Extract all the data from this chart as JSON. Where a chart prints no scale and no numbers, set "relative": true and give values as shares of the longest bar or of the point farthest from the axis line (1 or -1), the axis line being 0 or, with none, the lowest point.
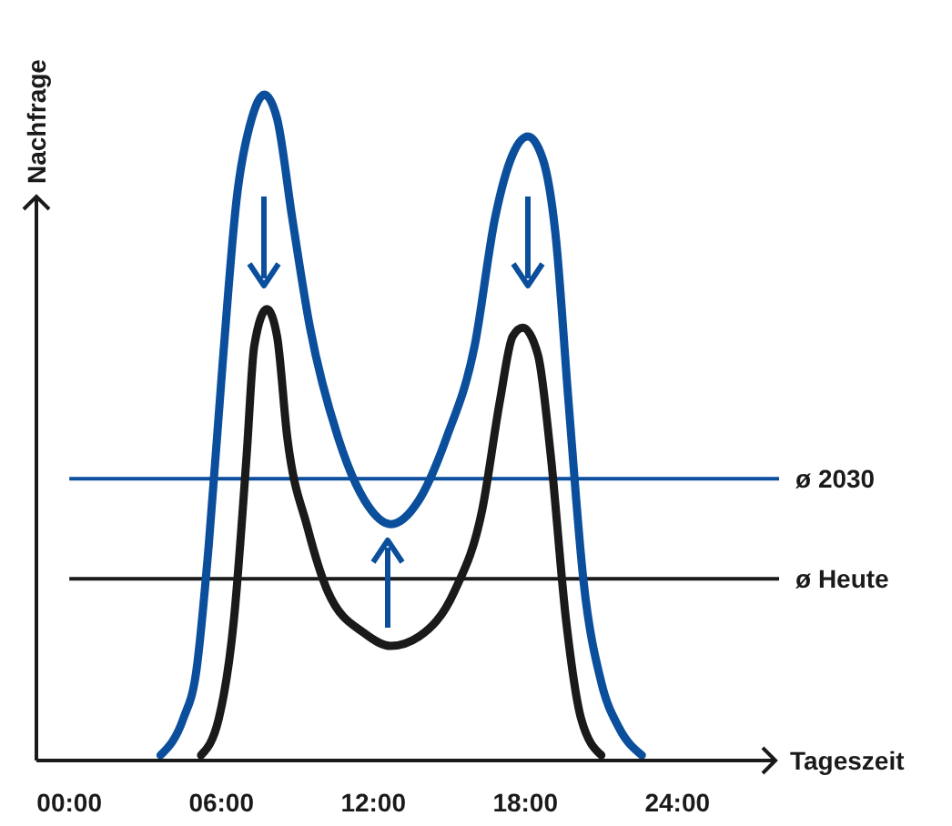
{
  "chart_data": {
    "type": "line",
    "relative": true,
    "xlabel": "Tageszeit",
    "ylabel": "Nachfrage",
    "xlim": [
      -1.3,
      27.8
    ],
    "xticks": [
      {
        "value": 0,
        "label": "00:00"
      },
      {
        "value": 6,
        "label": "06:00"
      },
      {
        "value": 12,
        "label": "12:00"
      },
      {
        "value": 18,
        "label": "18:00"
      },
      {
        "value": 24,
        "label": "24:00"
      }
    ],
    "grid": false,
    "marker": "none",
    "line_style": "solid",
    "series": [
      {
        "color": "#0b4f9c",
        "x": [
          3.6,
          4.5,
          5.0,
          5.5,
          6.05,
          6.6,
          7.2,
          7.7,
          8.2,
          8.8,
          9.5,
          10.6,
          11.65,
          12.7,
          13.8,
          14.9,
          16.0,
          16.8,
          17.5,
          18.1,
          18.7,
          19.2,
          19.7,
          20.3,
          21.0,
          21.7,
          22.6
        ],
        "values": [
          0.008,
          0.063,
          0.131,
          0.322,
          0.596,
          0.842,
          0.964,
          1,
          0.964,
          0.814,
          0.65,
          0.486,
          0.391,
          0.355,
          0.391,
          0.486,
          0.623,
          0.814,
          0.91,
          0.937,
          0.902,
          0.787,
          0.541,
          0.268,
          0.117,
          0.049,
          0.008
        ]
      },
      {
        "color": "#1a1a1a",
        "x": [
          5.2,
          5.9,
          6.5,
          7.0,
          7.3,
          7.8,
          8.2,
          8.6,
          9.4,
          10.2,
          11.65,
          12.7,
          13.8,
          15.2,
          16.3,
          17.0,
          17.5,
          17.9,
          18.5,
          19.0,
          19.6,
          20.2,
          21.0
        ],
        "values": [
          0.008,
          0.063,
          0.213,
          0.459,
          0.623,
          0.678,
          0.637,
          0.486,
          0.35,
          0.254,
          0.191,
          0.172,
          0.186,
          0.254,
          0.377,
          0.541,
          0.637,
          0.65,
          0.609,
          0.459,
          0.213,
          0.063,
          0.008
        ]
      }
    ],
    "ref_lines": [
      {
        "axis": "y",
        "value": 0.423,
        "label": "ø 2030",
        "color": "#0b4f9c"
      },
      {
        "axis": "y",
        "value": 0.273,
        "label": "ø Heute",
        "color": "#1a1a1a"
      }
    ]
  }
}
